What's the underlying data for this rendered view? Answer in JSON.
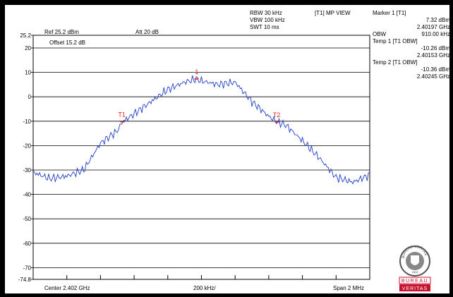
{
  "header": {
    "rbw": "RBW 30 kHz",
    "vbw": "VBW 100 kHz",
    "swt": "SWT 10 ms",
    "view": "[T1] MP VIEW",
    "ref": "Ref 25.2 dBm",
    "att": "Att  20 dB",
    "offset": "Offset 15.2 dB",
    "ref_value_label": "25.2"
  },
  "markers": {
    "m1_title": "Marker 1 [T1]",
    "m1_level": "7.32 dBm",
    "m1_freq": "2.40197 GHz",
    "obw_label": "OBW",
    "obw_value": "910.00 kHz",
    "t1_title": "Temp 1 [T1 OBW]",
    "t1_level": "-10.26 dBm",
    "t1_freq": "2.40153 GHz",
    "t2_title": "Temp 2 [T1 OBW]",
    "t2_level": "-10.36 dBm",
    "t2_freq": "2.40245 GHz",
    "label_1": "1",
    "label_t1": "T1",
    "label_t2": "T2"
  },
  "footer": {
    "center": "Center 2.402 GHz",
    "span_per_div": "200 kHz/",
    "span": "Span 2 MHz"
  },
  "logo": {
    "line1": "BUREAU",
    "line2": "VERITAS",
    "year": "1828",
    "ring_text": "BUREAU VERITAS"
  },
  "colors": {
    "trace": "#1f3fc9",
    "marker": "#e02020",
    "logo_red": "#c8102e"
  },
  "chart_data": {
    "type": "line",
    "title": "",
    "xlabel": "",
    "ylabel": "",
    "y_tick_labels": [
      "25.2",
      "20",
      "10",
      "0",
      "-10",
      "-20",
      "-30",
      "-40",
      "-50",
      "-60",
      "-70",
      "-74.8"
    ],
    "ylim": [
      -74.8,
      25.2
    ],
    "xlim": [
      2.401,
      2.403
    ],
    "x_unit": "GHz",
    "y_unit": "dBm",
    "grid": true,
    "series": [
      {
        "x": [
          2.401,
          2.4011,
          2.4012,
          2.4013,
          2.4014,
          2.4015,
          2.40153,
          2.4016,
          2.4017,
          2.4018,
          2.4019,
          2.40197,
          2.402,
          2.4021,
          2.4022,
          2.4023,
          2.4024,
          2.40245,
          2.4025,
          2.4026,
          2.4027,
          2.4028,
          2.4029,
          2.403
        ],
        "y": [
          -31,
          -33.5,
          -32.5,
          -30,
          -19,
          -14,
          -10.3,
          -7,
          -2,
          3,
          6,
          7.3,
          6.5,
          5,
          6,
          -2,
          -8,
          -10.4,
          -11.5,
          -18,
          -25,
          -33,
          -35,
          -32
        ]
      }
    ],
    "markers": [
      {
        "label": "1",
        "x": 2.40197,
        "y": 7.32
      },
      {
        "label": "T1",
        "x": 2.40153,
        "y": -10.26
      },
      {
        "label": "T2",
        "x": 2.40245,
        "y": -10.36
      }
    ]
  }
}
